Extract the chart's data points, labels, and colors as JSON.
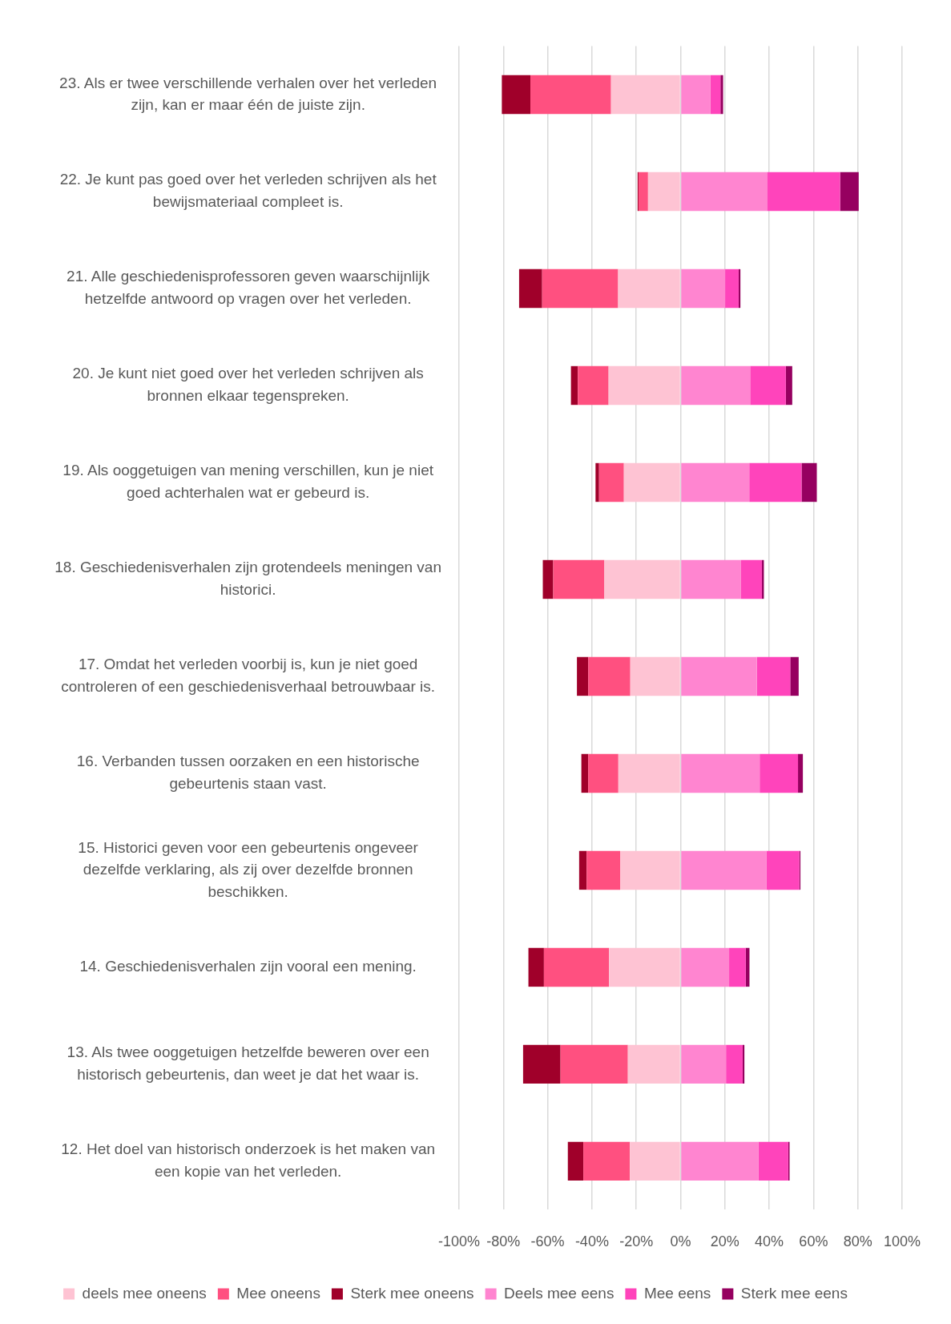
{
  "chart_data": {
    "type": "bar",
    "orientation": "horizontal",
    "stacked": true,
    "categories": [
      "23. Als er twee verschillende verhalen over het verleden zijn, kan er maar één de juiste zijn.",
      "22. Je kunt pas goed over het verleden schrijven als het bewijsmateriaal compleet is.",
      "21. Alle geschiedenisprofessoren geven waarschijnlijk hetzelfde antwoord op vragen over het verleden.",
      "20. Je kunt niet goed over het verleden schrijven als bronnen elkaar tegenspreken.",
      "19. Als ooggetuigen van mening verschillen, kun je niet goed achterhalen wat er gebeurd is.",
      "18. Geschiedenisverhalen zijn grotendeels meningen van historici.",
      "17. Omdat het verleden voorbij is, kun je niet goed controleren of een geschiedenisverhaal betrouwbaar is.",
      "16. Verbanden tussen oorzaken en een historische gebeurtenis staan vast.",
      "15. Historici geven voor een gebeurtenis ongeveer dezelfde verklaring, als zij over dezelfde bronnen beschikken.",
      "14. Geschiedenisverhalen zijn vooral een mening.",
      "13. Als twee ooggetuigen hetzelfde beweren over een historisch gebeurtenis, dan weet je dat het waar is.",
      "12. Het doel van historisch onderzoek is het maken van een kopie van het verleden."
    ],
    "series": [
      {
        "name": "deels mee oneens",
        "color": "#fec3d3",
        "values": [
          -31.4,
          -14.7,
          -28.2,
          -32.5,
          -25.6,
          -34.4,
          -22.7,
          -28.1,
          -27.3,
          -32.3,
          -23.8,
          -22.9
        ]
      },
      {
        "name": "Mee oneens",
        "color": "#ff5080",
        "values": [
          -36.4,
          -4.3,
          -34.3,
          -13.9,
          -11.2,
          -23.1,
          -19.0,
          -13.6,
          -15.1,
          -29.4,
          -30.4,
          -21.0
        ]
      },
      {
        "name": "Sterk mee oneens",
        "color": "#a0002a",
        "values": [
          -12.9,
          -0.4,
          -10.4,
          -3.1,
          -1.6,
          -4.7,
          -5.1,
          -3.1,
          -3.4,
          -7.0,
          -16.9,
          -7.0
        ]
      },
      {
        "name": "Deels mee eens",
        "color": "#ff85d0",
        "values": [
          13.5,
          39.0,
          20.1,
          31.4,
          31.0,
          27.1,
          34.4,
          35.7,
          38.7,
          21.9,
          20.5,
          35.1
        ]
      },
      {
        "name": "Mee eens",
        "color": "#ff44bb",
        "values": [
          4.5,
          33.0,
          6.1,
          16.1,
          23.6,
          9.6,
          15.1,
          17.3,
          14.9,
          7.5,
          7.5,
          13.5
        ]
      },
      {
        "name": "Sterk mee eens",
        "color": "#960060",
        "values": [
          1.2,
          8.4,
          0.8,
          2.9,
          6.9,
          0.9,
          3.8,
          2.2,
          0.5,
          1.7,
          0.8,
          0.6
        ]
      }
    ],
    "xlim": [
      -100,
      100
    ],
    "xticks": [
      {
        "value": -100,
        "label": "-100%"
      },
      {
        "value": -80,
        "label": "-80%"
      },
      {
        "value": -60,
        "label": "-60%"
      },
      {
        "value": -40,
        "label": "-40%"
      },
      {
        "value": -20,
        "label": "-20%"
      },
      {
        "value": 0,
        "label": "0%"
      },
      {
        "value": 20,
        "label": "20%"
      },
      {
        "value": 40,
        "label": "40%"
      },
      {
        "value": 60,
        "label": "60%"
      },
      {
        "value": 80,
        "label": "80%"
      },
      {
        "value": 100,
        "label": "100%"
      }
    ],
    "grid": "x",
    "legend": "bottom"
  }
}
